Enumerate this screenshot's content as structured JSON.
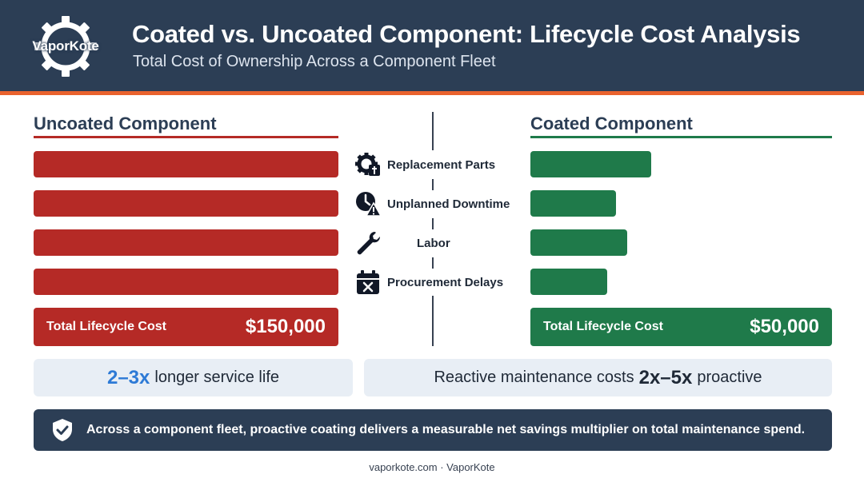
{
  "header": {
    "logo_text": "VaporKote",
    "title": "Coated vs. Uncoated Component: Lifecycle Cost Analysis",
    "subtitle": "Total Cost of Ownership Across a Component Fleet"
  },
  "chart_data": {
    "type": "bar",
    "orientation": "horizontal",
    "categories": [
      "Replacement Parts",
      "Unplanned Downtime",
      "Labor",
      "Procurement Delays"
    ],
    "series": [
      {
        "name": "Uncoated Component",
        "values": [
          1.0,
          1.0,
          1.0,
          1.0
        ],
        "color": "#b52a26",
        "total_label": "Total Lifecycle Cost",
        "total_value": "$150,000"
      },
      {
        "name": "Coated Component",
        "values": [
          0.4,
          0.285,
          0.32,
          0.255
        ],
        "color": "#1f7a4a",
        "total_label": "Total Lifecycle Cost",
        "total_value": "$50,000"
      }
    ],
    "category_icons": [
      "gear-wrench-icon",
      "clock-warning-icon",
      "wrench-icon",
      "calendar-x-icon"
    ],
    "grid": false,
    "layout": "butterfly"
  },
  "stats": {
    "left_highlight": "2–3x",
    "left_text": "longer service life",
    "right_prefix": "Reactive maintenance costs",
    "right_highlight": "2x–5x",
    "right_suffix": "proactive"
  },
  "footer": {
    "icon": "shield-check-icon",
    "text": "Across a component fleet, proactive coating delivers a measurable net savings multiplier on total maintenance spend."
  },
  "credit": "vaporkote.com · VaporKote",
  "colors": {
    "header_bg": "#2c3e55",
    "accent_stripe": "#e9622e",
    "uncoated": "#b52a26",
    "coated": "#1f7a4a",
    "highlight_blue": "#2d7ad6"
  }
}
